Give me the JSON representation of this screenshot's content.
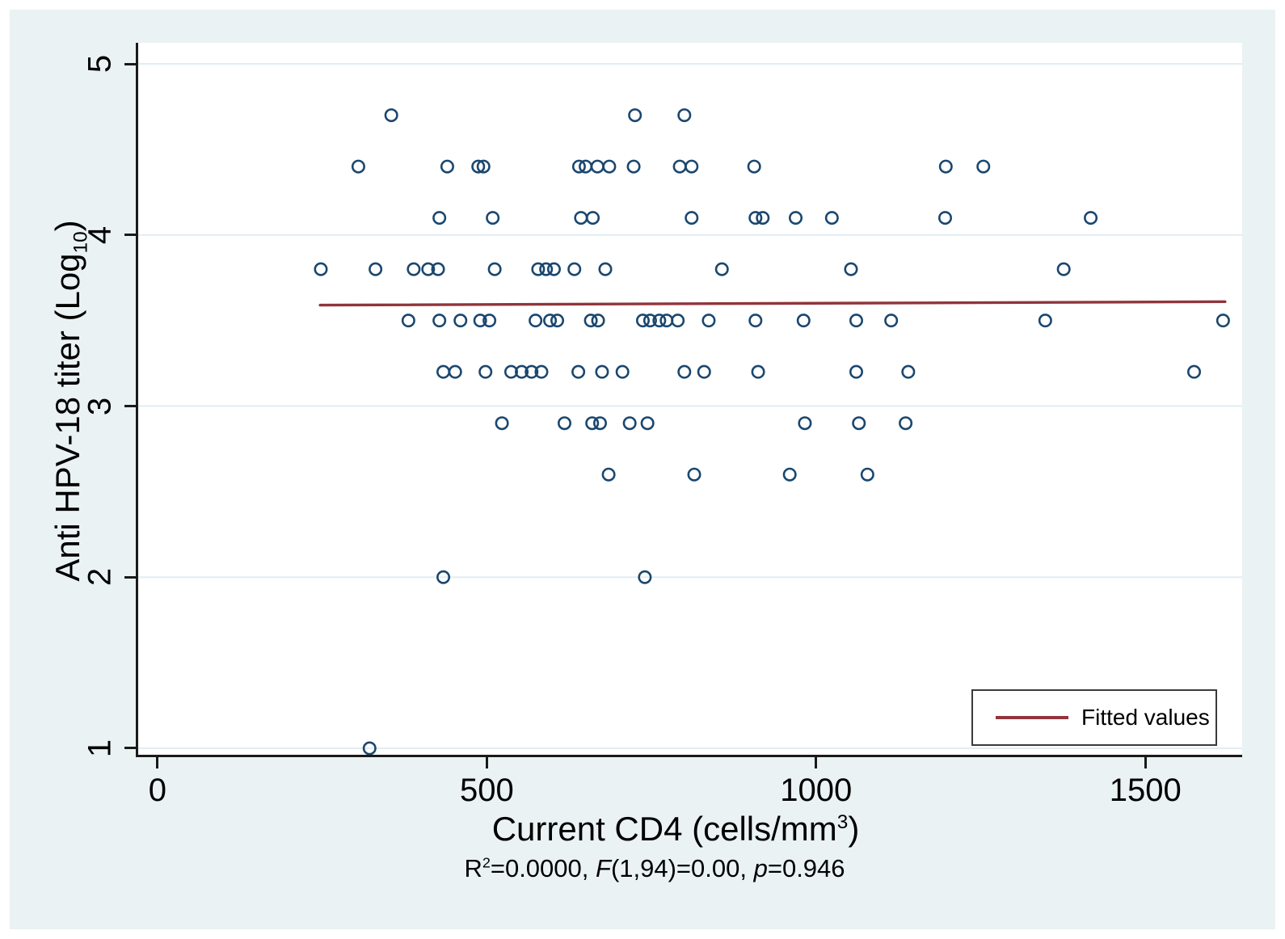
{
  "figure": {
    "background_color": "#eaf2f3",
    "plot_background_color": "#ffffff",
    "gridline_color": "#e2edf3",
    "axis_color": "#1a1a1a"
  },
  "chart_data": {
    "type": "scatter",
    "title": "",
    "xlabel_segments": [
      {
        "t": "Current CD4 (cells/mm"
      },
      {
        "t": "3",
        "style": "sup"
      },
      {
        "t": ")"
      }
    ],
    "ylabel_segments": [
      {
        "t": "Anti HPV-18 titer (Log"
      },
      {
        "t": "10",
        "style": "sub"
      },
      {
        "t": ")"
      }
    ],
    "caption_segments": [
      {
        "t": "R"
      },
      {
        "t": "2",
        "style": "sup"
      },
      {
        "t": "=0.0000, "
      },
      {
        "t": "F",
        "style": "italic"
      },
      {
        "t": "(1,94)=0.00, "
      },
      {
        "t": "p",
        "style": "italic"
      },
      {
        "t": "=0.946"
      }
    ],
    "x_ticks": [
      0,
      500,
      1000,
      1500
    ],
    "y_ticks": [
      1,
      2,
      3,
      4,
      5
    ],
    "xlim": [
      -33,
      1647
    ],
    "ylim": [
      0.948,
      5.123
    ],
    "grid": "horizontal",
    "marker": {
      "shape": "open-circle",
      "color": "#1a476f",
      "radius": 7.2,
      "stroke_width": 2.6
    },
    "points": [
      [
        355,
        4.7
      ],
      [
        725,
        4.7
      ],
      [
        800,
        4.7
      ],
      [
        305,
        4.4
      ],
      [
        440,
        4.4
      ],
      [
        487,
        4.4
      ],
      [
        495,
        4.4
      ],
      [
        640,
        4.4
      ],
      [
        650,
        4.4
      ],
      [
        668,
        4.4
      ],
      [
        686,
        4.4
      ],
      [
        723,
        4.4
      ],
      [
        793,
        4.4
      ],
      [
        811,
        4.4
      ],
      [
        906,
        4.4
      ],
      [
        1197,
        4.4
      ],
      [
        1254,
        4.4
      ],
      [
        428,
        4.1
      ],
      [
        509,
        4.1
      ],
      [
        643,
        4.1
      ],
      [
        661,
        4.1
      ],
      [
        811,
        4.1
      ],
      [
        908,
        4.1
      ],
      [
        919,
        4.1
      ],
      [
        969,
        4.1
      ],
      [
        1024,
        4.1
      ],
      [
        1196,
        4.1
      ],
      [
        1417,
        4.1
      ],
      [
        248,
        3.8
      ],
      [
        331,
        3.8
      ],
      [
        389,
        3.8
      ],
      [
        411,
        3.8
      ],
      [
        426,
        3.8
      ],
      [
        512,
        3.8
      ],
      [
        578,
        3.8
      ],
      [
        590,
        3.8
      ],
      [
        602,
        3.8
      ],
      [
        633,
        3.8
      ],
      [
        680,
        3.8
      ],
      [
        857,
        3.8
      ],
      [
        1053,
        3.8
      ],
      [
        1376,
        3.8
      ],
      [
        381,
        3.5
      ],
      [
        428,
        3.5
      ],
      [
        460,
        3.5
      ],
      [
        490,
        3.5
      ],
      [
        504,
        3.5
      ],
      [
        574,
        3.5
      ],
      [
        596,
        3.5
      ],
      [
        607,
        3.5
      ],
      [
        658,
        3.5
      ],
      [
        669,
        3.5
      ],
      [
        737,
        3.5
      ],
      [
        748,
        3.5
      ],
      [
        762,
        3.5
      ],
      [
        773,
        3.5
      ],
      [
        790,
        3.5
      ],
      [
        837,
        3.5
      ],
      [
        908,
        3.5
      ],
      [
        981,
        3.5
      ],
      [
        1061,
        3.5
      ],
      [
        1114,
        3.5
      ],
      [
        1348,
        3.5
      ],
      [
        1618,
        3.5
      ],
      [
        434,
        3.2
      ],
      [
        452,
        3.2
      ],
      [
        498,
        3.2
      ],
      [
        537,
        3.2
      ],
      [
        553,
        3.2
      ],
      [
        568,
        3.2
      ],
      [
        583,
        3.2
      ],
      [
        639,
        3.2
      ],
      [
        675,
        3.2
      ],
      [
        706,
        3.2
      ],
      [
        800,
        3.2
      ],
      [
        830,
        3.2
      ],
      [
        912,
        3.2
      ],
      [
        1061,
        3.2
      ],
      [
        1140,
        3.2
      ],
      [
        1574,
        3.2
      ],
      [
        523,
        2.9
      ],
      [
        618,
        2.9
      ],
      [
        660,
        2.9
      ],
      [
        672,
        2.9
      ],
      [
        717,
        2.9
      ],
      [
        744,
        2.9
      ],
      [
        983,
        2.9
      ],
      [
        1065,
        2.9
      ],
      [
        1136,
        2.9
      ],
      [
        685,
        2.6
      ],
      [
        815,
        2.6
      ],
      [
        960,
        2.6
      ],
      [
        1078,
        2.6
      ],
      [
        434,
        2.0
      ],
      [
        740,
        2.0
      ],
      [
        322,
        1.0
      ]
    ],
    "fitted_line": {
      "label": "Fitted values",
      "color": "#90353b",
      "x": [
        247,
        1621
      ],
      "y": [
        3.59,
        3.61
      ],
      "stroke_width": 3.4
    },
    "legend": {
      "position": "bottom-right",
      "entries": [
        "Fitted values"
      ],
      "line_color": "#90353b"
    }
  }
}
